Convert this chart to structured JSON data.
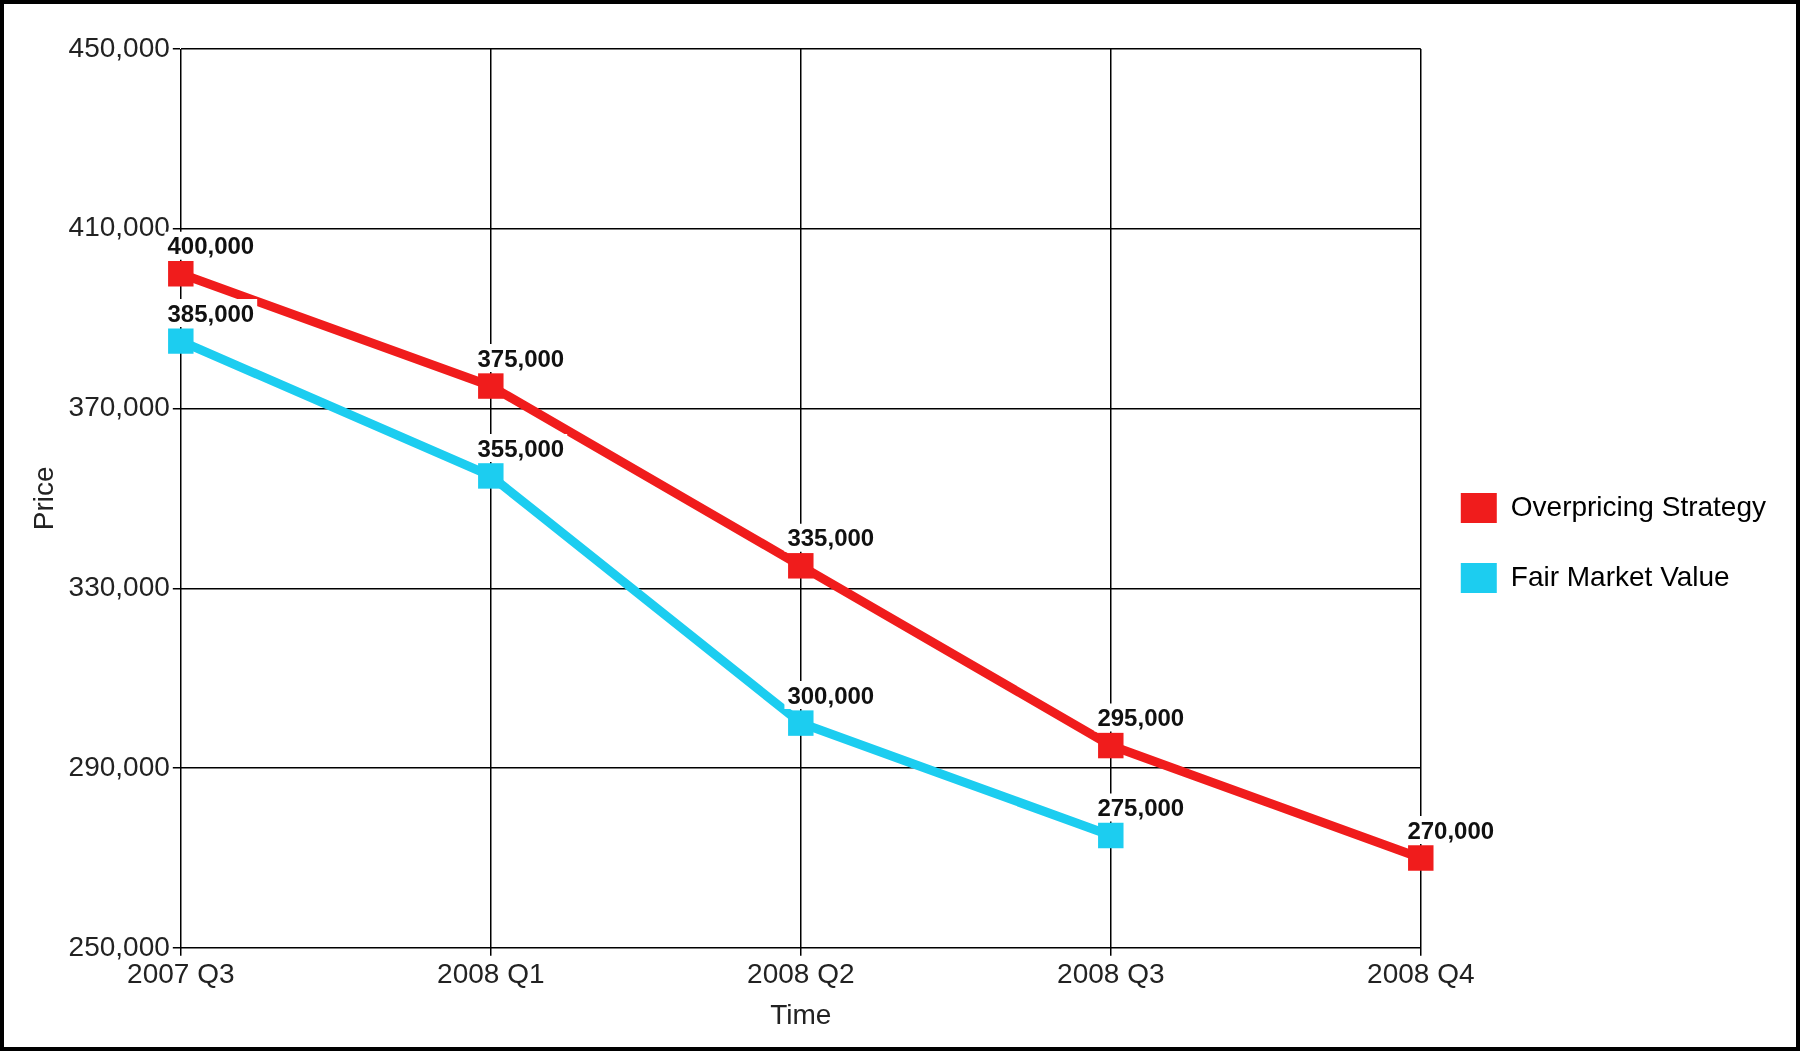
{
  "chart_data": {
    "type": "line",
    "xlabel": "Time",
    "ylabel": "Price",
    "categories": [
      "2007 Q3",
      "2008 Q1",
      "2008 Q2",
      "2008 Q3",
      "2008 Q4"
    ],
    "series": [
      {
        "name": "Overpricing Strategy",
        "color": "#f01c1c",
        "values": [
          400000,
          375000,
          335000,
          295000,
          270000
        ],
        "value_labels": [
          "400,000",
          "375,000",
          "335,000",
          "295,000",
          "270,000"
        ]
      },
      {
        "name": "Fair Market Value",
        "color": "#1ccdf0",
        "values": [
          385000,
          355000,
          300000,
          275000,
          null
        ],
        "value_labels": [
          "385,000",
          "355,000",
          "300,000",
          "275,000",
          null
        ]
      }
    ],
    "ylim": [
      250000,
      450000
    ],
    "yticks": [
      {
        "value": 250000,
        "label": "250,000"
      },
      {
        "value": 290000,
        "label": "290,000"
      },
      {
        "value": 330000,
        "label": "330,000"
      },
      {
        "value": 370000,
        "label": "370,000"
      },
      {
        "value": 410000,
        "label": "410,000"
      },
      {
        "value": 450000,
        "label": "450,000"
      }
    ],
    "grid": true,
    "legend": "right",
    "marker": "square"
  }
}
